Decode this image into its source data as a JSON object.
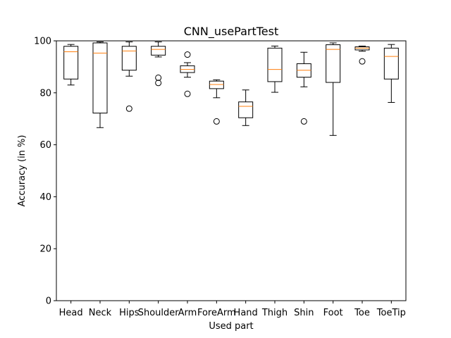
{
  "chart_data": {
    "type": "box",
    "title": "CNN_usePartTest",
    "xlabel": "Used part",
    "ylabel": "Accuracy (in %)",
    "ylim": [
      0,
      100
    ],
    "yticks": [
      0,
      20,
      40,
      60,
      80,
      100
    ],
    "grid": false,
    "legend": "none",
    "colors": {
      "box": "#000000",
      "median": "#ff7f0e",
      "flier": "#000000"
    },
    "categories": [
      "Head",
      "Neck",
      "Hips",
      "Shoulder",
      "Arm",
      "ForeArm",
      "Hand",
      "Thigh",
      "Shin",
      "Foot",
      "Toe",
      "ToeTip"
    ],
    "boxes": [
      {
        "label": "Head",
        "whisker_low": 83.0,
        "q1": 85.3,
        "median": 95.8,
        "q3": 97.9,
        "whisker_high": 98.6,
        "fliers": []
      },
      {
        "label": "Neck",
        "whisker_low": 66.6,
        "q1": 72.2,
        "median": 95.3,
        "q3": 99.2,
        "whisker_high": 99.6,
        "fliers": []
      },
      {
        "label": "Hips",
        "whisker_low": 86.4,
        "q1": 88.7,
        "median": 96.1,
        "q3": 97.9,
        "whisker_high": 99.6,
        "fliers": [
          73.9
        ]
      },
      {
        "label": "Shoulder",
        "whisker_low": 93.8,
        "q1": 94.5,
        "median": 96.7,
        "q3": 97.9,
        "whisker_high": 99.6,
        "fliers": [
          85.8,
          83.8
        ]
      },
      {
        "label": "Arm",
        "whisker_low": 86.0,
        "q1": 87.8,
        "median": 89.0,
        "q3": 90.4,
        "whisker_high": 91.6,
        "fliers": [
          94.7,
          79.6
        ]
      },
      {
        "label": "ForeArm",
        "whisker_low": 78.1,
        "q1": 81.6,
        "median": 83.2,
        "q3": 84.5,
        "whisker_high": 85.0,
        "fliers": [
          69.0
        ]
      },
      {
        "label": "Hand",
        "whisker_low": 67.4,
        "q1": 70.4,
        "median": 74.8,
        "q3": 76.5,
        "whisker_high": 81.1,
        "fliers": []
      },
      {
        "label": "Thigh",
        "whisker_low": 80.2,
        "q1": 84.3,
        "median": 89.0,
        "q3": 97.2,
        "whisker_high": 98.0,
        "fliers": []
      },
      {
        "label": "Shin",
        "whisker_low": 82.3,
        "q1": 86.0,
        "median": 88.7,
        "q3": 91.2,
        "whisker_high": 95.6,
        "fliers": [
          69.0
        ]
      },
      {
        "label": "Foot",
        "whisker_low": 63.6,
        "q1": 84.0,
        "median": 96.7,
        "q3": 98.5,
        "whisker_high": 99.2,
        "fliers": []
      },
      {
        "label": "Toe",
        "whisker_low": 96.0,
        "q1": 96.5,
        "median": 97.2,
        "q3": 97.7,
        "whisker_high": 98.0,
        "fliers": [
          92.1
        ]
      },
      {
        "label": "ToeTip",
        "whisker_low": 76.3,
        "q1": 85.3,
        "median": 94.0,
        "q3": 97.2,
        "whisker_high": 98.6,
        "fliers": []
      }
    ]
  }
}
